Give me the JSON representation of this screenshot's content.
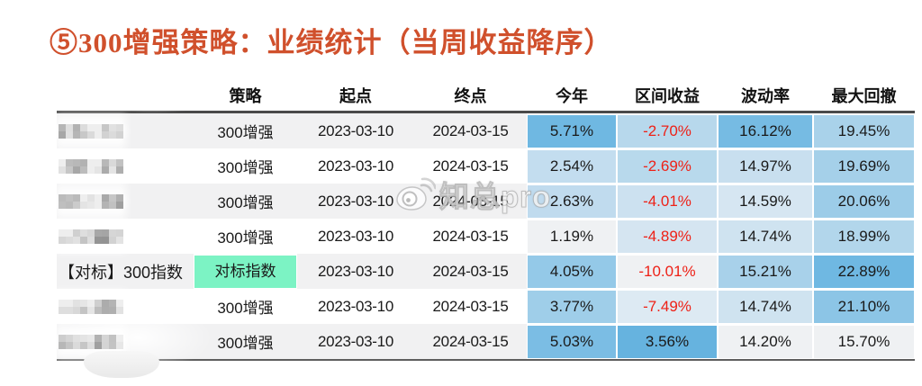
{
  "title": "⑤300增强策略：业绩统计（当周收益降序）",
  "watermark": {
    "text": "知总pro",
    "icon": "weibo-icon"
  },
  "colors": {
    "title": "#D0502C",
    "negative_text": "#EE2117",
    "normal_text": "#1A1A1A",
    "benchmark_cell": "#7CF3C4",
    "row_stripe": "#F1F1F2",
    "header_rule": "#4A4A4A",
    "heat_strong": "#66B3DF",
    "heat_weak": "#EFF1F3"
  },
  "chart_data": {
    "type": "table",
    "title": "⑤300增强策略：业绩统计（当周收益降序）",
    "sort": "当周收益降序",
    "columns": [
      "",
      "策略",
      "起点",
      "终点",
      "今年",
      "区间收益",
      "波动率",
      "最大回撤"
    ],
    "rows": [
      {
        "redacted": true,
        "name": "",
        "strategy": "300增强",
        "start": "2023-03-10",
        "end": "2024-03-15",
        "ytd": "5.71%",
        "ytd_bg": "#6FB8E2",
        "interval": "-2.70%",
        "interval_bg": "#B7D8EC",
        "interval_negative": true,
        "vol": "16.12%",
        "vol_bg": "#76BBE3",
        "mdd": "19.45%",
        "mdd_bg": "#A9D2EA"
      },
      {
        "redacted": true,
        "name": "",
        "strategy": "300增强",
        "start": "2023-03-10",
        "end": "2024-03-15",
        "ytd": "2.54%",
        "ytd_bg": "#C3DDEF",
        "interval": "-2.69%",
        "interval_bg": "#B8D9EC",
        "interval_negative": true,
        "vol": "14.97%",
        "vol_bg": "#C8DFEF",
        "mdd": "19.69%",
        "mdd_bg": "#A5D0E9"
      },
      {
        "redacted": true,
        "name": "",
        "strategy": "300增强",
        "start": "2023-03-10",
        "end": "2024-03-15",
        "ytd": "2.63%",
        "ytd_bg": "#C0DBEE",
        "interval": "-4.01%",
        "interval_bg": "#CCE1F0",
        "interval_negative": true,
        "vol": "14.59%",
        "vol_bg": "#D6E6F2",
        "mdd": "20.06%",
        "mdd_bg": "#9CCCE8"
      },
      {
        "redacted": true,
        "name": "",
        "strategy": "300增强",
        "start": "2023-03-10",
        "end": "2024-03-15",
        "ytd": "1.19%",
        "ytd_bg": "#EFF1F3",
        "interval": "-4.89%",
        "interval_bg": "#D5E5F1",
        "interval_negative": true,
        "vol": "14.74%",
        "vol_bg": "#CFE3F0",
        "mdd": "18.99%",
        "mdd_bg": "#B2D6EB"
      },
      {
        "redacted": false,
        "name": "【对标】300指数",
        "strategy": "对标指数",
        "strategy_bg": "#7CF3C4",
        "start": "2023-03-10",
        "end": "2024-03-15",
        "ytd": "4.05%",
        "ytd_bg": "#94C9E8",
        "interval": "-10.01%",
        "interval_bg": "#EFF1F3",
        "interval_negative": true,
        "vol": "15.21%",
        "vol_bg": "#A8D1EA",
        "mdd": "22.89%",
        "mdd_bg": "#6FB8E2"
      },
      {
        "redacted": true,
        "name": "",
        "strategy": "300增强",
        "start": "2023-03-10",
        "end": "2024-03-15",
        "ytd": "3.77%",
        "ytd_bg": "#9FCEE9",
        "interval": "-7.49%",
        "interval_bg": "#DDEAF3",
        "interval_negative": true,
        "vol": "14.74%",
        "vol_bg": "#CFE3F0",
        "mdd": "21.10%",
        "mdd_bg": "#8CC5E6"
      },
      {
        "redacted": true,
        "name": "",
        "strategy": "300增强",
        "start": "2023-03-10",
        "end": "2024-03-15",
        "ytd": "5.03%",
        "ytd_bg": "#7BBDE4",
        "interval": "3.56%",
        "interval_bg": "#66B3DF",
        "interval_negative": false,
        "vol": "14.20%",
        "vol_bg": "#EFF1F3",
        "mdd": "15.70%",
        "mdd_bg": "#EFF1F3"
      }
    ]
  }
}
